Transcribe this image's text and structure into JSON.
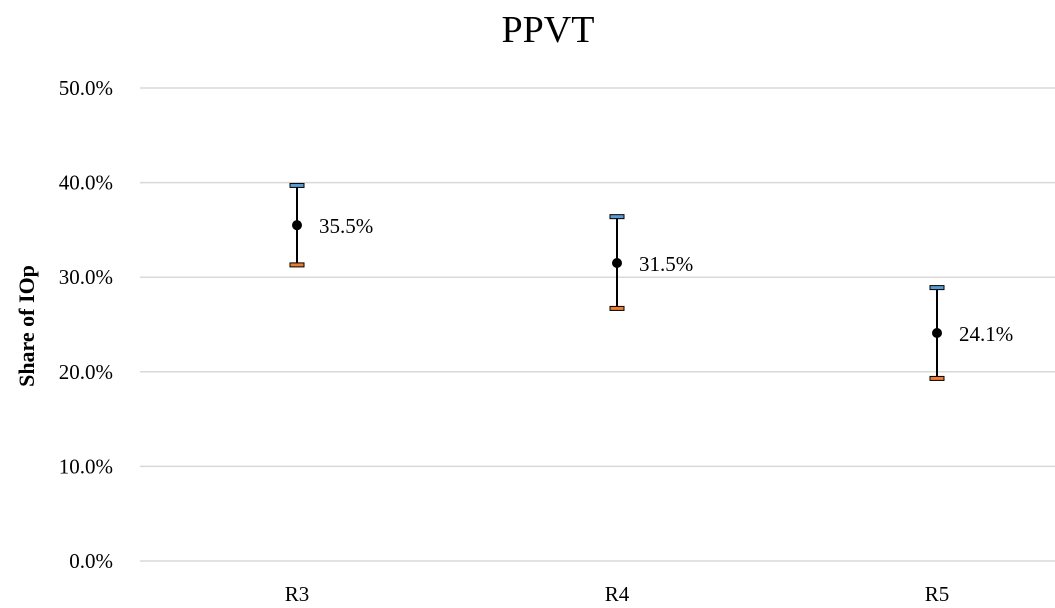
{
  "chart_data": {
    "type": "scatter",
    "title": "PPVT",
    "xlabel": "",
    "ylabel": "Share of IOp",
    "categories": [
      "R3",
      "R4",
      "R5"
    ],
    "values": [
      35.5,
      31.5,
      24.1
    ],
    "upper": [
      39.7,
      36.4,
      28.9
    ],
    "lower": [
      31.3,
      26.7,
      19.3
    ],
    "data_labels": [
      "35.5%",
      "31.5%",
      "24.1%"
    ],
    "ylim": [
      0,
      50
    ],
    "yticks": [
      0,
      10,
      20,
      30,
      40,
      50
    ],
    "ytick_labels": [
      "0.0%",
      "10.0%",
      "20.0%",
      "30.0%",
      "40.0%",
      "50.0%"
    ],
    "grid": true,
    "legend": "none",
    "colors": {
      "marker": "#000000",
      "error_bar": "#000000",
      "upper_cap": "#5b9bd5",
      "lower_cap": "#ed7d31",
      "gridline": "#d9d9d9"
    }
  }
}
